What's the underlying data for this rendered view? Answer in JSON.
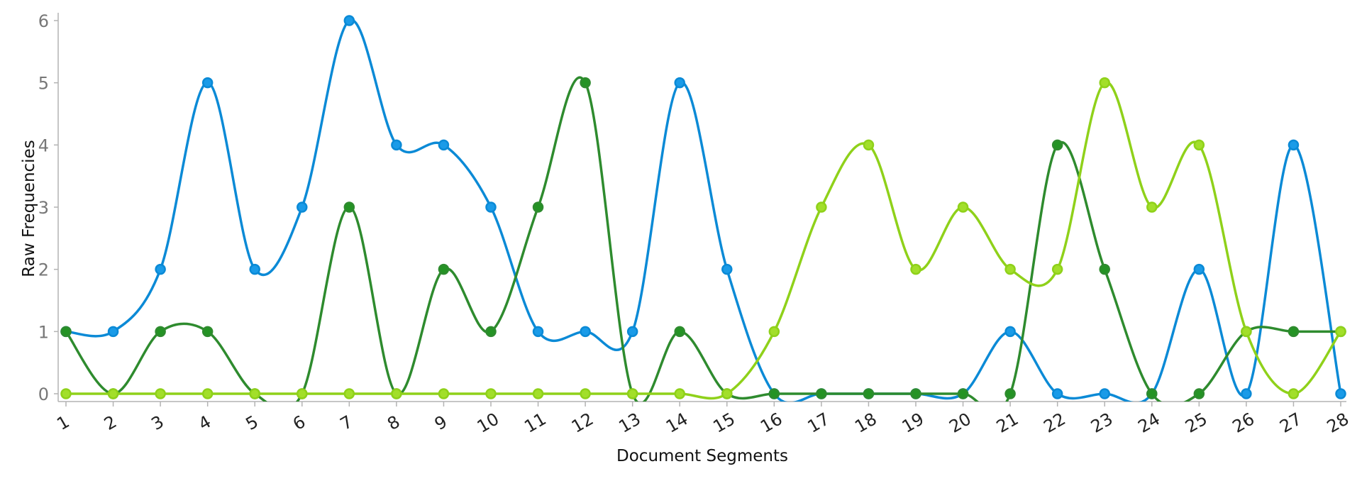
{
  "chart_data": {
    "type": "line",
    "xlabel": "Document Segments",
    "ylabel": "Raw Frequencies",
    "x": [
      1,
      2,
      3,
      4,
      5,
      6,
      7,
      8,
      9,
      10,
      11,
      12,
      13,
      14,
      15,
      16,
      17,
      18,
      19,
      20,
      21,
      22,
      23,
      24,
      25,
      26,
      27,
      28
    ],
    "x_tick_labels": [
      "1",
      "2",
      "3",
      "4",
      "5",
      "6",
      "7",
      "8",
      "9",
      "10",
      "11",
      "12",
      "13",
      "14",
      "15",
      "16",
      "17",
      "18",
      "19",
      "20",
      "21",
      "22",
      "23",
      "24",
      "25",
      "26",
      "27",
      "28"
    ],
    "y_tick_labels": [
      "0",
      "1",
      "2",
      "3",
      "4",
      "5",
      "6"
    ],
    "ylim": [
      0,
      6
    ],
    "xlim": [
      1,
      28
    ],
    "grid": false,
    "legend": "none",
    "series": [
      {
        "color": "#0b8ad6",
        "point_fill": "#1a9be8",
        "values": [
          1,
          1,
          2,
          5,
          2,
          3,
          6,
          4,
          4,
          3,
          1,
          1,
          1,
          5,
          2,
          0,
          0,
          0,
          0,
          0,
          1,
          0,
          0,
          0,
          2,
          0,
          4,
          0
        ]
      },
      {
        "color": "#2e8b2e",
        "point_fill": "#249324",
        "values": [
          1,
          0,
          1,
          1,
          0,
          0,
          3,
          0,
          2,
          1,
          3,
          5,
          0,
          1,
          0,
          0,
          0,
          0,
          0,
          0,
          0,
          4,
          2,
          0,
          0,
          1,
          1,
          1
        ]
      },
      {
        "color": "#8fd11a",
        "point_fill": "#a2df2a",
        "values": [
          0,
          0,
          0,
          0,
          0,
          0,
          0,
          0,
          0,
          0,
          0,
          0,
          0,
          0,
          0,
          1,
          3,
          4,
          2,
          3,
          2,
          2,
          5,
          3,
          4,
          1,
          0,
          1
        ]
      }
    ]
  }
}
